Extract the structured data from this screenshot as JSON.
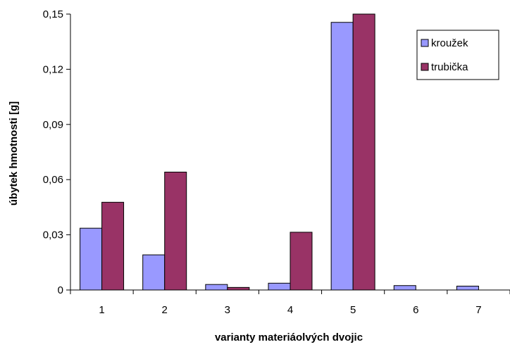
{
  "chart_data": {
    "type": "bar",
    "categories": [
      "1",
      "2",
      "3",
      "4",
      "5",
      "6",
      "7"
    ],
    "series": [
      {
        "name": "kroužek",
        "values": [
          0.0336,
          0.0191,
          0.003,
          0.0037,
          0.1455,
          0.0024,
          0.0021
        ],
        "color": "#9999FF"
      },
      {
        "name": "trubička",
        "values": [
          0.0477,
          0.0641,
          0.0014,
          0.0314,
          0.153,
          0.0,
          0.0
        ],
        "color": "#993366"
      }
    ],
    "xlabel": "varianty materiáolvých dvojic",
    "ylabel": "úbytek hmotnosti [g]",
    "ylim": [
      0,
      0.15
    ],
    "yticks": [
      0,
      0.03,
      0.06,
      0.09,
      0.12,
      0.15
    ],
    "ytick_labels": [
      "0",
      "0,03",
      "0,06",
      "0,09",
      "0,12",
      "0,15"
    ],
    "grid": false,
    "legend": "top-right"
  }
}
